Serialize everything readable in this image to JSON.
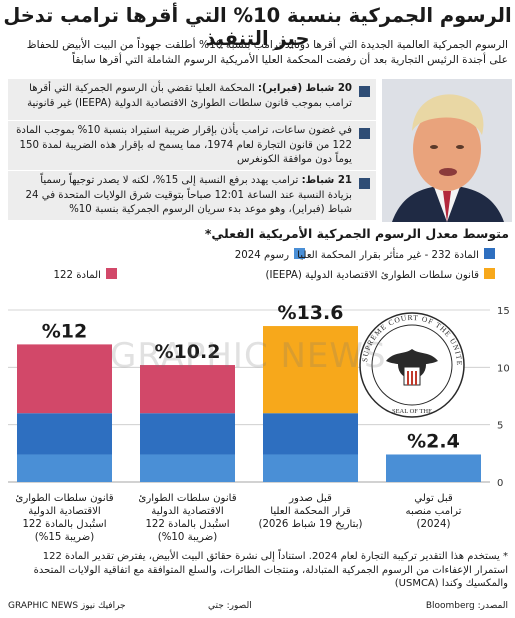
{
  "title": "الرسوم الجمركية بنسبة 10% التي أقرها ترامب تدخل حيز التنفيذ",
  "intro": "الرسوم الجمركية العالمية الجديدة التي أقرها دونالد ترامب بنسبة 10% أطلقت جهوداً من البيت الأبيض للحفاظ على أجندة الرئيس التجارية بعد أن رفضت المحكمة العليا الأمريكية الرسوم الشاملة التي أقرها سابقاً",
  "facts": [
    {
      "lead": "20 شباط (فبراير):",
      "text": " المحكمة العليا تقضي بأن الرسوم الجمركية التي أقرها ترامب بموجب قانون سلطات الطوارئ الاقتصادية الدولية (IEEPA) غير قانونية"
    },
    {
      "lead": "",
      "text": "في غضون ساعات، ترامب يأذن بإقرار ضريبة استيراد بنسبة 10% بموجب المادة 122 من قانون التجارة لعام 1974، مما يسمح له بإقرار هذه الضريبة لمدة 150 يوماً دون موافقة الكونغرس"
    },
    {
      "lead": "21 شباط:",
      "text": " ترامب يهدد برفع النسبة إلى 15%، لكنه لا يصدر توجيهاً رسمياً بزيادة النسبة عند الساعة 12:01 صباحاً بتوقيت شرق الولايات المتحدة في 24 شباط (فبراير)، وهو موعد بدء سريان الرسوم الجمركية بنسبة 10%"
    }
  ],
  "photo_icon": "person-photo",
  "seal_icon": "supreme-court-seal",
  "seal_text": "SUPREME COURT OF THE UNITED STATES",
  "seal_bottom": "SEAL OF THE",
  "watermark": "GRAPHIC NEWS",
  "chart_data": {
    "type": "bar",
    "stacked": true,
    "title": "متوسط معدل الرسوم الجمركية الأمريكية الفعلي*",
    "categories": [
      "قبل تولي ترامب منصبه (2024)",
      "قبل صدور قرار المحكمة العليا (بتاريخ 19 شباط 2026)",
      "قانون سلطات الطوارئ الاقتصادية الدولية استُبدل بالمادة 122 (ضريبة 10%)",
      "قانون سلطات الطوارئ الاقتصادية الدولية استُبدل بالمادة 122 (ضريبة 15%)"
    ],
    "category_lines": [
      [
        "قبل تولي",
        "ترامب منصبه",
        "(2024)"
      ],
      [
        "قبل صدور",
        "قرار المحكمة العليا",
        "(بتاريخ 19 شباط 2026)"
      ],
      [
        "قانون سلطات الطوارئ",
        "الاقتصادية الدولية",
        "استُبدل بالمادة 122",
        "(ضريبة 10%)"
      ],
      [
        "قانون سلطات الطوارئ",
        "الاقتصادية الدولية",
        "استُبدل بالمادة 122",
        "(ضريبة 15%)"
      ]
    ],
    "series": [
      {
        "name": "رسوم 2024",
        "color": "#4a8fd6",
        "values": [
          2.4,
          2.4,
          2.4,
          2.4
        ]
      },
      {
        "name": "المادة 232 - غير متأثر بقرار المحكمة العليا",
        "color": "#2e6fc0",
        "values": [
          0,
          3.6,
          3.6,
          3.6
        ]
      },
      {
        "name": "قانون سلطات الطوارئ الاقتصادية الدولية (IEEPA)",
        "color": "#f7a81b",
        "values": [
          0,
          7.6,
          0,
          0
        ]
      },
      {
        "name": "المادة 122",
        "color": "#d24869",
        "values": [
          0,
          0,
          4.2,
          6.0
        ]
      }
    ],
    "totals": [
      2.4,
      13.6,
      10.2,
      12.0
    ],
    "total_labels": [
      "%2.4",
      "%13.6",
      "%10.2",
      "%12"
    ],
    "ylim": [
      0,
      15
    ],
    "yticks": [
      0,
      5,
      10,
      15
    ],
    "grid": true,
    "legend_position": "top"
  },
  "footnote": "* يستخدم هذا التقدير تركيبة التجارة لعام 2024. استناداً إلى نشرة حقائق البيت الأبيض، يفترض تقدير المادة 122 استمرار الإعفاءات من الرسوم الجمركية المتبادلة، ومنتجات الطائرات، والسلع المتوافقة مع اتفاقية الولايات المتحدة والمكسيك وكندا (USMCA)",
  "credits": {
    "source": "المصدر: Bloomberg",
    "photo": "الصور: جتي",
    "brand": "GRAPHIC NEWS جرافيك نيوز"
  }
}
